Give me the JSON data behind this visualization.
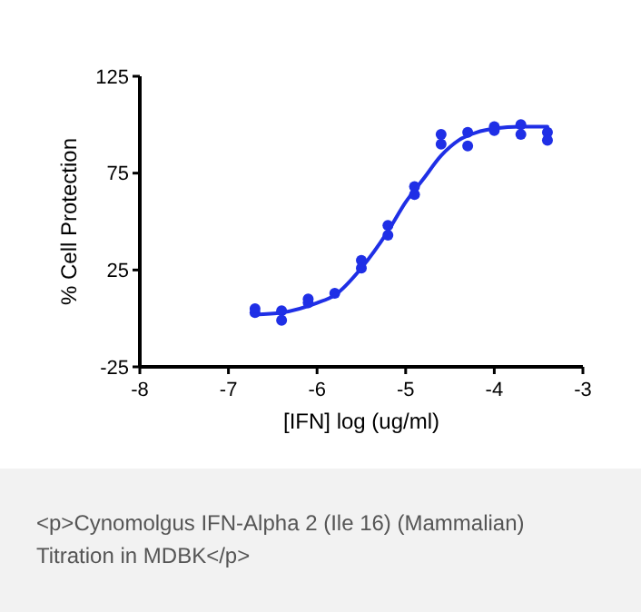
{
  "chart_data": {
    "type": "scatter",
    "xlabel": "[IFN] log (ug/ml)",
    "ylabel": "% Cell Protection",
    "xlim": [
      -8,
      -3
    ],
    "xticks": [
      -8,
      -7,
      -6,
      -5,
      -4,
      -3
    ],
    "ylim": [
      -25,
      125
    ],
    "yticks": [
      -25,
      25,
      75,
      125
    ],
    "grid": false,
    "series": [
      {
        "color": "#1f2fe6",
        "marker": "circle",
        "x": [
          -6.7,
          -6.7,
          -6.4,
          -6.4,
          -6.1,
          -6.1,
          -5.8,
          -5.5,
          -5.5,
          -5.2,
          -5.2,
          -4.9,
          -4.9,
          -4.6,
          -4.6,
          -4.3,
          -4.3,
          -4.0,
          -4.0,
          -3.7,
          -3.7,
          -3.4,
          -3.4
        ],
        "values": [
          5,
          3,
          4,
          -1,
          10,
          8,
          13,
          30,
          26,
          48,
          43,
          68,
          64,
          95,
          90,
          96,
          89,
          99,
          97,
          100,
          95,
          96,
          92
        ]
      },
      {
        "type": "line",
        "color": "#1f2fe6",
        "marker": "none",
        "line_style": "solid",
        "x": [
          -6.7,
          -6.4,
          -6.0,
          -5.8,
          -5.5,
          -5.2,
          -5.0,
          -4.8,
          -4.6,
          -4.4,
          -4.2,
          -4.0,
          -3.7,
          -3.4
        ],
        "values": [
          2,
          3,
          8,
          12,
          26,
          45,
          60,
          72,
          84,
          92,
          96,
          98,
          99,
          99
        ]
      }
    ],
    "annotations": [
      "<p>Cynomolgus IFN-Alpha 2 (Ile 16) (Mammalian) Titration in MDBK</p>"
    ]
  }
}
